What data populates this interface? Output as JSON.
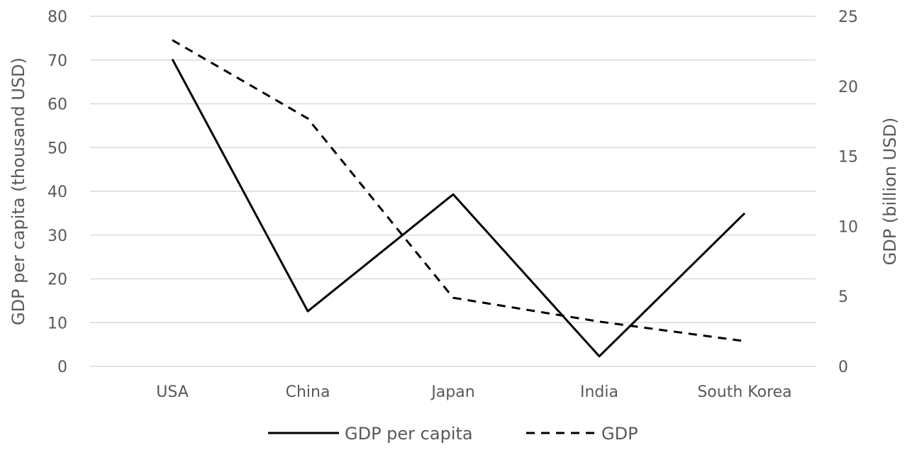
{
  "chart_data": {
    "type": "line",
    "categories": [
      "USA",
      "China",
      "Japan",
      "India",
      "South Korea"
    ],
    "series": [
      {
        "name": "GDP per capita",
        "axis": "left",
        "style": "solid",
        "values": [
          70.2,
          12.6,
          39.3,
          2.3,
          35.0
        ]
      },
      {
        "name": "GDP",
        "axis": "right",
        "style": "dashed",
        "values": [
          23.3,
          17.7,
          4.9,
          3.2,
          1.8
        ]
      }
    ],
    "ylabel_left": "GDP per capita (thousand USD)",
    "ylabel_right": "GDP (billion USD)",
    "ylim_left": [
      0,
      80
    ],
    "ylim_right": [
      0,
      25
    ],
    "yticks_left": [
      "0",
      "10",
      "20",
      "30",
      "40",
      "50",
      "60",
      "70",
      "80"
    ],
    "yticks_right": [
      "0",
      "5",
      "10",
      "15",
      "20",
      "25"
    ],
    "grid": true,
    "legend_position": "bottom",
    "colors": {
      "line": "#000000",
      "grid": "#d9d9d9",
      "text": "#595959"
    }
  }
}
